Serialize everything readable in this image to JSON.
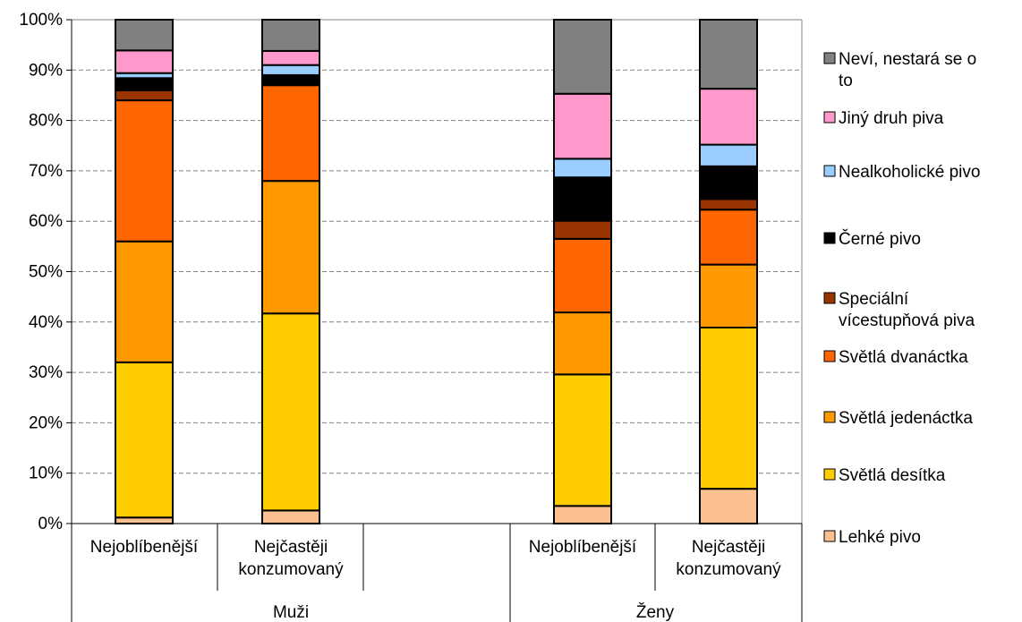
{
  "chart_data": {
    "type": "bar",
    "stacked": true,
    "groups": [
      {
        "name": "Muži",
        "categories": [
          "Nejoblíbenější",
          "Nejčastěji konzumovaný"
        ]
      },
      {
        "name": "Ženy",
        "categories": [
          "Nejoblíbenější",
          "Nejčastěji konzumovaný"
        ]
      }
    ],
    "categories": [
      {
        "lines": [
          "Nejoblíbenější"
        ],
        "group": "Muži"
      },
      {
        "lines": [
          "Nejčastěji",
          "konzumovaný"
        ],
        "group": "Muži"
      },
      {
        "lines": [
          "Nejoblíbenější"
        ],
        "group": "Ženy"
      },
      {
        "lines": [
          "Nejčastěji",
          "konzumovaný"
        ],
        "group": "Ženy"
      }
    ],
    "series": [
      {
        "name": "Lehké pivo",
        "color": "#FAC090",
        "values": [
          1.2,
          2.6,
          3.5,
          6.9
        ]
      },
      {
        "name": "Světlá desítka",
        "color": "#FFCC00",
        "values": [
          30.8,
          39.1,
          26.1,
          32.0
        ]
      },
      {
        "name": "Světlá jedenáctka",
        "color": "#FF9900",
        "values": [
          24.0,
          26.3,
          12.3,
          12.5
        ]
      },
      {
        "name": "Světlá dvanáctka",
        "color": "#FF6600",
        "values": [
          28.0,
          19.0,
          14.6,
          10.9
        ]
      },
      {
        "name": "Speciální vícestupňová piva",
        "color": "#993300",
        "values": [
          2.0,
          0.0,
          3.6,
          2.1
        ]
      },
      {
        "name": "Černé pivo",
        "color": "#000000",
        "values": [
          2.4,
          2.0,
          8.6,
          6.5
        ]
      },
      {
        "name": "Nealkoholické pivo",
        "color": "#99CCFF",
        "values": [
          1.0,
          2.0,
          3.7,
          4.3
        ]
      },
      {
        "name": "Jiný druh piva",
        "color": "#FF99CC",
        "values": [
          4.5,
          2.8,
          12.9,
          11.1
        ]
      },
      {
        "name": "Neví, nestará se o to",
        "color": "#808080",
        "values": [
          6.1,
          6.2,
          14.7,
          13.7
        ]
      }
    ],
    "legend_order": [
      "Neví, nestará se o to",
      "Jiný druh piva",
      "Nealkoholické pivo",
      "Černé pivo",
      "Speciální vícestupňová piva",
      "Světlá dvanáctka",
      "Světlá jedenáctka",
      "Světlá desítka",
      "Lehké pivo"
    ],
    "legend_labels": [
      [
        "Neví, nestará se o",
        "to"
      ],
      [
        "Jiný druh piva"
      ],
      [
        "Nealkoholické pivo"
      ],
      [
        "Černé pivo"
      ],
      [
        "Speciální",
        "vícestupňová piva"
      ],
      [
        "Světlá dvanáctka"
      ],
      [
        "Světlá jedenáctka"
      ],
      [
        "Světlá desítka"
      ],
      [
        "Lehké pivo"
      ]
    ],
    "y_ticks": [
      "0%",
      "10%",
      "20%",
      "30%",
      "40%",
      "50%",
      "60%",
      "70%",
      "80%",
      "90%",
      "100%"
    ],
    "ylim": [
      0,
      100
    ],
    "grid": true,
    "legend_position": "right"
  }
}
